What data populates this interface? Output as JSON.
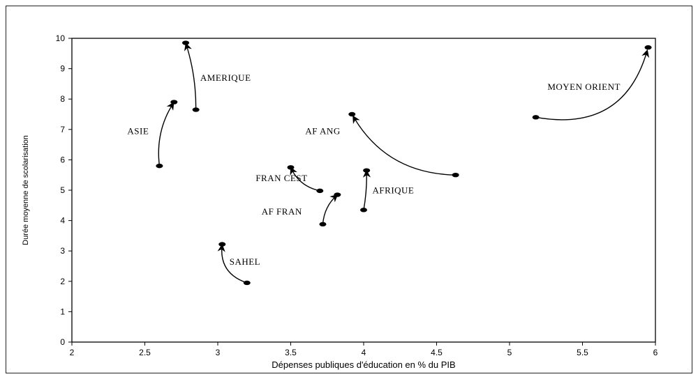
{
  "chart_data": {
    "type": "scatter",
    "title": "",
    "xlabel": "Dépenses publiques d'éducation en % du PIB",
    "ylabel": "Durée moyenne de scolarisation",
    "xlim": [
      2,
      6
    ],
    "ylim": [
      0,
      10
    ],
    "x_ticks": [
      "2",
      "2.5",
      "3",
      "3.5",
      "4",
      "4.5",
      "5",
      "5.5",
      "6"
    ],
    "y_ticks": [
      "0",
      "1",
      "2",
      "3",
      "4",
      "5",
      "6",
      "7",
      "8",
      "9",
      "10"
    ],
    "grid": false,
    "series": [
      {
        "name": "AMERIQUE",
        "points": [
          [
            2.85,
            7.65
          ],
          [
            2.78,
            9.85
          ]
        ],
        "label_at": [
          2.88,
          8.6
        ]
      },
      {
        "name": "ASIE",
        "points": [
          [
            2.6,
            5.8
          ],
          [
            2.7,
            7.9
          ]
        ],
        "label_at": [
          2.38,
          6.85
        ]
      },
      {
        "name": "MOYEN ORIENT",
        "points": [
          [
            5.18,
            7.4
          ],
          [
            5.95,
            9.7
          ]
        ],
        "label_at": [
          5.26,
          8.3
        ]
      },
      {
        "name": "AF ANG",
        "points": [
          [
            4.63,
            5.5
          ],
          [
            3.92,
            7.5
          ]
        ],
        "label_at": [
          3.6,
          6.85
        ]
      },
      {
        "name": "FRAN CEST",
        "points": [
          [
            3.7,
            4.98
          ],
          [
            3.5,
            5.75
          ]
        ],
        "label_at": [
          3.26,
          5.3
        ]
      },
      {
        "name": "AFRIQUE",
        "points": [
          [
            4.0,
            4.35
          ],
          [
            4.02,
            5.65
          ]
        ],
        "label_at": [
          4.06,
          4.9
        ]
      },
      {
        "name": "AF FRAN",
        "points": [
          [
            3.72,
            3.88
          ],
          [
            3.82,
            4.85
          ]
        ],
        "label_at": [
          3.3,
          4.2
        ]
      },
      {
        "name": "SAHEL",
        "points": [
          [
            3.2,
            1.95
          ],
          [
            3.03,
            3.22
          ]
        ],
        "label_at": [
          3.08,
          2.55
        ]
      }
    ]
  }
}
